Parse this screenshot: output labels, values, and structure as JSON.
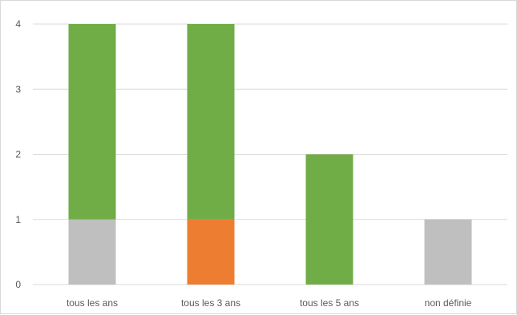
{
  "chart_data": {
    "type": "bar",
    "stacked": true,
    "categories": [
      "tous les ans",
      "tous les 3 ans",
      "tous les 5 ans",
      "non définie"
    ],
    "series": [
      {
        "values": [
          1,
          0,
          0,
          1
        ],
        "color": "#bfbfbf"
      },
      {
        "values": [
          0,
          1,
          0,
          0
        ],
        "color": "#ed7d31"
      },
      {
        "values": [
          3,
          3,
          2,
          0
        ],
        "color": "#70ad47"
      }
    ],
    "ylim": [
      0,
      4
    ],
    "yticks": [
      "0",
      "1",
      "2",
      "3",
      "4"
    ],
    "grid": true,
    "legend": "none",
    "title": "",
    "xlabel": "",
    "ylabel": ""
  }
}
